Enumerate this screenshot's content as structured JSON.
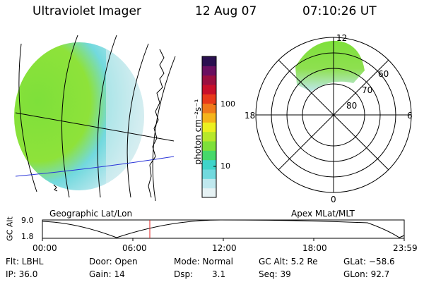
{
  "header": {
    "instrument": "Ultraviolet Imager",
    "date": "12 Aug 07",
    "time": "07:10:26 UT"
  },
  "geo_panel": {
    "label": "Geographic Lat/Lon"
  },
  "polar_panel": {
    "label": "Apex MLat/MLT",
    "mlt_labels": {
      "top": "12",
      "bottom": "0",
      "left": "18",
      "right": "6"
    },
    "lat_labels": [
      "60",
      "70",
      "80"
    ]
  },
  "colorbar": {
    "unit_label": "photon cm⁻²s⁻¹",
    "tick_100": "100",
    "tick_10": "10",
    "colors": [
      "#e6f2f4",
      "#bfe8ee",
      "#72d9de",
      "#3fd4c9",
      "#46d86a",
      "#7ee03a",
      "#b7e82a",
      "#ecf020",
      "#f5b41a",
      "#f07a1a",
      "#e83a1a",
      "#c8102a",
      "#9a1040",
      "#6a1060",
      "#2a1050"
    ]
  },
  "altitude_plot": {
    "ylabel": "GC Alt",
    "y_ticks": [
      "9.0",
      "1.8"
    ],
    "x_ticks": [
      "00:00",
      "06:00",
      "12:00",
      "18:00",
      "23:59"
    ]
  },
  "footer": {
    "flt": "Flt: LBHL",
    "ip": "IP: 36.0",
    "door": "Door: Open",
    "gain": "Gain: 14",
    "mode": "Mode: Normal",
    "dsp_label": "Dsp:",
    "dsp_value": "3.1",
    "gcalt": "GC Alt: 5.2 Re",
    "seq": "Seq: 39",
    "glat": "GLat: −58.6",
    "glon": "GLon:  92.7"
  },
  "colors": {
    "aurora_green": "#7ee03a",
    "aurora_cyan": "#72d9de",
    "aurora_pale": "#d8eef0",
    "equator_line": "#2a35d8",
    "current_time_marker": "#e02020"
  }
}
